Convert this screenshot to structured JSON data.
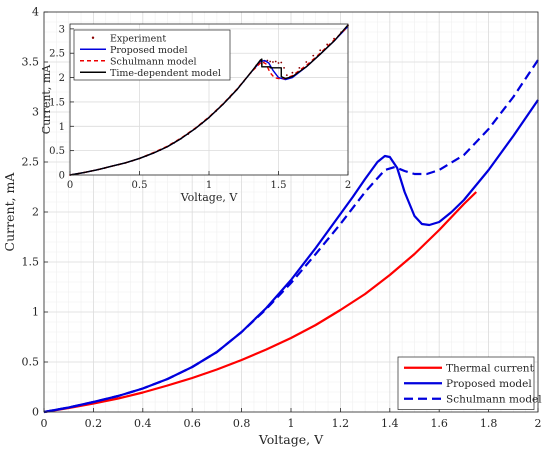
{
  "chart_data": [
    {
      "type": "line",
      "panel": "main",
      "xlabel": "Voltage, V",
      "ylabel": "Current, mA",
      "xlim": [
        0,
        2
      ],
      "ylim": [
        0,
        4
      ],
      "xticks": [
        0,
        0.2,
        0.4,
        0.6,
        0.8,
        1,
        1.2,
        1.4,
        1.6,
        1.8,
        2
      ],
      "xtick_labels": [
        "0",
        "0.2",
        "0.4",
        "0.6",
        "0.8",
        "1",
        "1.2",
        "1.4",
        "1.6",
        "1.8",
        "2"
      ],
      "yticks": [
        0,
        0.5,
        1,
        1.5,
        2,
        2.5,
        3,
        3.5,
        4
      ],
      "ytick_labels": [
        "0",
        "0.5",
        "1",
        "1.5",
        "2",
        "2.5",
        "3",
        "3.5",
        "4"
      ],
      "grid": true,
      "minor_grid": true,
      "legend_position": "bottom-right",
      "series": [
        {
          "name": "Thermal current",
          "color": "#ff0000",
          "style": "solid",
          "points": [
            [
              0,
              0
            ],
            [
              0.1,
              0.04
            ],
            [
              0.2,
              0.085
            ],
            [
              0.3,
              0.135
            ],
            [
              0.4,
              0.195
            ],
            [
              0.5,
              0.265
            ],
            [
              0.6,
              0.34
            ],
            [
              0.7,
              0.425
            ],
            [
              0.8,
              0.52
            ],
            [
              0.9,
              0.625
            ],
            [
              1.0,
              0.74
            ],
            [
              1.1,
              0.87
            ],
            [
              1.2,
              1.02
            ],
            [
              1.3,
              1.18
            ],
            [
              1.4,
              1.37
            ],
            [
              1.5,
              1.58
            ],
            [
              1.6,
              1.82
            ],
            [
              1.7,
              2.08
            ],
            [
              1.75,
              2.2
            ]
          ]
        },
        {
          "name": "Proposed model",
          "color": "#0000dd",
          "style": "solid",
          "points": [
            [
              0,
              0
            ],
            [
              0.1,
              0.045
            ],
            [
              0.2,
              0.1
            ],
            [
              0.3,
              0.16
            ],
            [
              0.4,
              0.235
            ],
            [
              0.5,
              0.33
            ],
            [
              0.6,
              0.45
            ],
            [
              0.7,
              0.6
            ],
            [
              0.8,
              0.8
            ],
            [
              0.9,
              1.04
            ],
            [
              1.0,
              1.32
            ],
            [
              1.1,
              1.64
            ],
            [
              1.2,
              1.98
            ],
            [
              1.25,
              2.15
            ],
            [
              1.3,
              2.33
            ],
            [
              1.35,
              2.5
            ],
            [
              1.38,
              2.56
            ],
            [
              1.4,
              2.55
            ],
            [
              1.43,
              2.44
            ],
            [
              1.46,
              2.2
            ],
            [
              1.5,
              1.96
            ],
            [
              1.53,
              1.88
            ],
            [
              1.56,
              1.87
            ],
            [
              1.6,
              1.9
            ],
            [
              1.65,
              2.0
            ],
            [
              1.7,
              2.12
            ],
            [
              1.8,
              2.42
            ],
            [
              1.9,
              2.76
            ],
            [
              2.0,
              3.12
            ]
          ]
        },
        {
          "name": "Schulmann model",
          "color": "#0000dd",
          "style": "dashed",
          "points": [
            [
              0,
              0
            ],
            [
              0.1,
              0.045
            ],
            [
              0.2,
              0.1
            ],
            [
              0.3,
              0.16
            ],
            [
              0.4,
              0.235
            ],
            [
              0.5,
              0.33
            ],
            [
              0.6,
              0.45
            ],
            [
              0.7,
              0.6
            ],
            [
              0.8,
              0.8
            ],
            [
              0.9,
              1.03
            ],
            [
              1.0,
              1.29
            ],
            [
              1.1,
              1.58
            ],
            [
              1.2,
              1.88
            ],
            [
              1.3,
              2.2
            ],
            [
              1.38,
              2.42
            ],
            [
              1.42,
              2.45
            ],
            [
              1.46,
              2.41
            ],
            [
              1.5,
              2.38
            ],
            [
              1.55,
              2.38
            ],
            [
              1.6,
              2.42
            ],
            [
              1.7,
              2.57
            ],
            [
              1.8,
              2.83
            ],
            [
              1.9,
              3.15
            ],
            [
              2.0,
              3.52
            ]
          ]
        }
      ]
    },
    {
      "type": "line",
      "panel": "inset",
      "xlabel": "Voltage, V",
      "ylabel": "Current, mA",
      "xlim": [
        0,
        2
      ],
      "ylim": [
        0,
        3.1
      ],
      "xticks": [
        0,
        0.5,
        1,
        1.5,
        2
      ],
      "xtick_labels": [
        "0",
        "0.5",
        "1",
        "1.5",
        "2"
      ],
      "yticks": [
        0,
        0.5,
        1,
        1.5,
        2,
        2.5,
        3
      ],
      "ytick_labels": [
        "0",
        "0.5",
        "1",
        "1.5",
        "2",
        "2.5",
        "3"
      ],
      "grid": true,
      "legend_position": "top-left",
      "series": [
        {
          "name": "Experiment",
          "color": "#8b0000",
          "style": "dots",
          "points": [
            [
              0,
              0
            ],
            [
              0.05,
              0.02
            ],
            [
              0.1,
              0.05
            ],
            [
              0.15,
              0.08
            ],
            [
              0.2,
              0.11
            ],
            [
              0.25,
              0.14
            ],
            [
              0.3,
              0.18
            ],
            [
              0.35,
              0.21
            ],
            [
              0.4,
              0.25
            ],
            [
              0.45,
              0.29
            ],
            [
              0.5,
              0.34
            ],
            [
              0.55,
              0.39
            ],
            [
              0.6,
              0.45
            ],
            [
              0.65,
              0.51
            ],
            [
              0.7,
              0.58
            ],
            [
              0.75,
              0.66
            ],
            [
              0.8,
              0.75
            ],
            [
              0.85,
              0.84
            ],
            [
              0.9,
              0.95
            ],
            [
              0.95,
              1.06
            ],
            [
              1.0,
              1.18
            ],
            [
              1.05,
              1.31
            ],
            [
              1.1,
              1.45
            ],
            [
              1.15,
              1.59
            ],
            [
              1.2,
              1.75
            ],
            [
              1.25,
              1.92
            ],
            [
              1.3,
              2.1
            ],
            [
              1.34,
              2.25
            ],
            [
              1.37,
              2.35
            ],
            [
              1.38,
              2.28
            ],
            [
              1.4,
              2.34
            ],
            [
              1.42,
              2.35
            ],
            [
              1.44,
              2.33
            ],
            [
              1.46,
              2.32
            ],
            [
              1.48,
              2.33
            ],
            [
              1.5,
              2.3
            ],
            [
              1.52,
              2.31
            ],
            [
              1.54,
              2.2
            ],
            [
              1.56,
              2.05
            ],
            [
              1.6,
              2.1
            ],
            [
              1.65,
              2.2
            ],
            [
              1.7,
              2.32
            ],
            [
              1.75,
              2.45
            ],
            [
              1.8,
              2.56
            ],
            [
              1.85,
              2.68
            ],
            [
              1.9,
              2.8
            ],
            [
              1.95,
              2.93
            ],
            [
              2.0,
              3.07
            ]
          ]
        },
        {
          "name": "Proposed model",
          "color": "#0000dd",
          "style": "solid",
          "points": [
            [
              0,
              0
            ],
            [
              0.1,
              0.05
            ],
            [
              0.2,
              0.11
            ],
            [
              0.3,
              0.18
            ],
            [
              0.4,
              0.25
            ],
            [
              0.5,
              0.34
            ],
            [
              0.6,
              0.45
            ],
            [
              0.7,
              0.58
            ],
            [
              0.8,
              0.75
            ],
            [
              0.9,
              0.95
            ],
            [
              1.0,
              1.18
            ],
            [
              1.1,
              1.45
            ],
            [
              1.2,
              1.75
            ],
            [
              1.3,
              2.1
            ],
            [
              1.37,
              2.33
            ],
            [
              1.4,
              2.35
            ],
            [
              1.43,
              2.3
            ],
            [
              1.46,
              2.15
            ],
            [
              1.5,
              2.0
            ],
            [
              1.55,
              1.96
            ],
            [
              1.6,
              2.0
            ],
            [
              1.7,
              2.22
            ],
            [
              1.8,
              2.48
            ],
            [
              1.9,
              2.75
            ],
            [
              2.0,
              3.05
            ]
          ]
        },
        {
          "name": "Schulmann model",
          "color": "#ee0000",
          "style": "dashed",
          "points": [
            [
              0,
              0
            ],
            [
              0.1,
              0.05
            ],
            [
              0.2,
              0.11
            ],
            [
              0.3,
              0.18
            ],
            [
              0.4,
              0.25
            ],
            [
              0.5,
              0.34
            ],
            [
              0.6,
              0.46
            ],
            [
              0.7,
              0.59
            ],
            [
              0.8,
              0.76
            ],
            [
              0.9,
              0.96
            ],
            [
              1.0,
              1.19
            ],
            [
              1.1,
              1.46
            ],
            [
              1.2,
              1.76
            ],
            [
              1.3,
              2.1
            ],
            [
              1.38,
              2.33
            ],
            [
              1.41,
              2.28
            ],
            [
              1.44,
              2.1
            ],
            [
              1.47,
              2.0
            ],
            [
              1.5,
              1.98
            ],
            [
              1.55,
              1.98
            ],
            [
              1.6,
              2.04
            ],
            [
              1.7,
              2.25
            ],
            [
              1.8,
              2.5
            ],
            [
              1.9,
              2.77
            ],
            [
              2.0,
              3.05
            ]
          ]
        },
        {
          "name": "Time-dependent model",
          "color": "#000000",
          "style": "solid",
          "points": [
            [
              0,
              0
            ],
            [
              0.1,
              0.05
            ],
            [
              0.2,
              0.11
            ],
            [
              0.3,
              0.18
            ],
            [
              0.4,
              0.25
            ],
            [
              0.5,
              0.34
            ],
            [
              0.6,
              0.45
            ],
            [
              0.7,
              0.58
            ],
            [
              0.8,
              0.75
            ],
            [
              0.9,
              0.95
            ],
            [
              1.0,
              1.18
            ],
            [
              1.1,
              1.45
            ],
            [
              1.2,
              1.75
            ],
            [
              1.3,
              2.1
            ],
            [
              1.37,
              2.36
            ],
            [
              1.38,
              2.38
            ],
            [
              1.38,
              2.22
            ],
            [
              1.44,
              2.22
            ],
            [
              1.44,
              2.2
            ],
            [
              1.52,
              2.2
            ],
            [
              1.52,
              2.02
            ],
            [
              1.55,
              1.98
            ],
            [
              1.6,
              2.02
            ],
            [
              1.7,
              2.22
            ],
            [
              1.8,
              2.48
            ],
            [
              1.9,
              2.75
            ],
            [
              2.0,
              3.08
            ]
          ]
        }
      ]
    }
  ]
}
